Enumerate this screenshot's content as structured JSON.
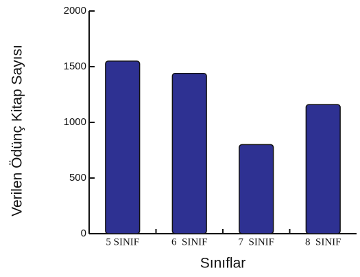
{
  "chart_data": {
    "type": "bar",
    "y_label": "Verilen Ödünç Kitap Sayısı",
    "x_label": "Sınıflar",
    "categories": [
      "5 SINIF",
      "6  SINIF",
      "7  SINIF",
      "8  SINIF"
    ],
    "values": [
      1550,
      1440,
      800,
      1160
    ],
    "color": "#2e3192",
    "ylim": [
      0,
      2000
    ],
    "yticks": [
      0,
      500,
      1000,
      1500,
      2000
    ],
    "grid": false
  }
}
